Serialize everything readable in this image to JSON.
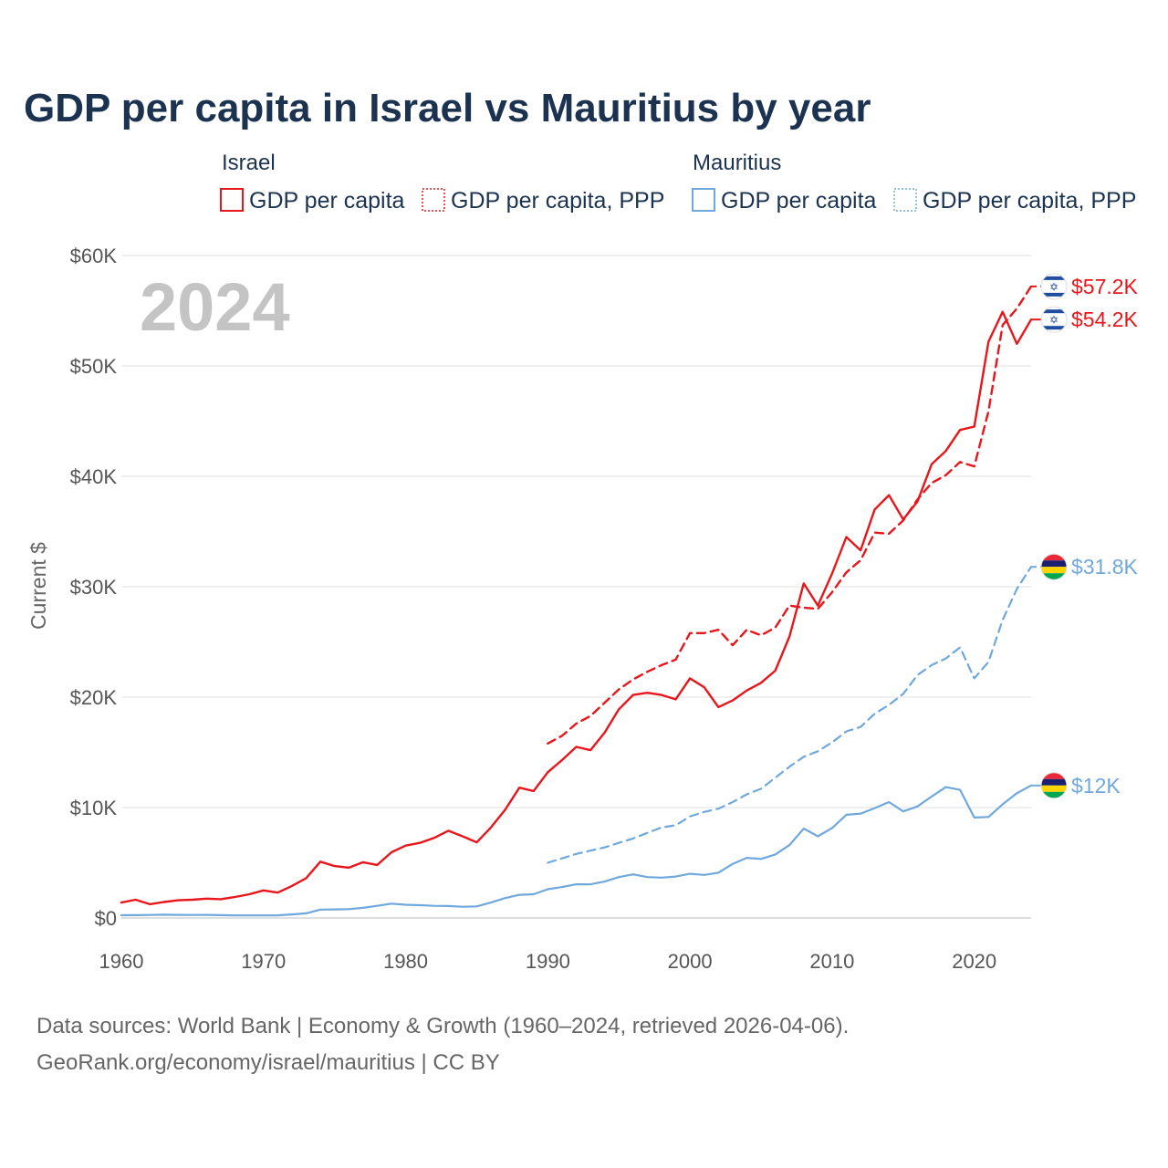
{
  "title": "GDP per capita in Israel vs Mauritius by year",
  "year_label": "2024",
  "legend": {
    "groups": [
      {
        "name": "Israel",
        "color": "#e8161b",
        "items": [
          {
            "label": "GDP per capita",
            "style": "solid"
          },
          {
            "label": "GDP per capita, PPP",
            "style": "dashed"
          }
        ]
      },
      {
        "name": "Mauritius",
        "color": "#6fa8dc",
        "items": [
          {
            "label": "GDP per capita",
            "style": "solid"
          },
          {
            "label": "GDP per capita, PPP",
            "style": "dashed"
          }
        ]
      }
    ]
  },
  "footer": {
    "line1": "Data sources: World Bank | Economy & Growth (1960–2024, retrieved 2026-04-06).",
    "line2": "GeoRank.org/economy/israel/mauritius | CC BY"
  },
  "chart_data": {
    "type": "line",
    "title": "GDP per capita in Israel vs Mauritius by year",
    "xlabel": "",
    "ylabel": "Current $",
    "xlim": [
      1960,
      2024
    ],
    "ylim": [
      0,
      60000
    ],
    "x_ticks": [
      1960,
      1970,
      1980,
      1990,
      2000,
      2010,
      2020
    ],
    "y_ticks": [
      0,
      10000,
      20000,
      30000,
      40000,
      50000,
      60000
    ],
    "y_tick_labels": [
      "$0",
      "$10K",
      "$20K",
      "$30K",
      "$40K",
      "$50K",
      "$60K"
    ],
    "grid": "horizontal",
    "series": [
      {
        "name": "Israel GDP per capita",
        "country": "Israel",
        "color": "#e8161b",
        "style": "solid",
        "end_label": "$54.2K",
        "x": [
          1960,
          1961,
          1962,
          1963,
          1964,
          1965,
          1966,
          1967,
          1968,
          1969,
          1970,
          1971,
          1972,
          1973,
          1974,
          1975,
          1976,
          1977,
          1978,
          1979,
          1980,
          1981,
          1982,
          1983,
          1984,
          1985,
          1986,
          1987,
          1988,
          1989,
          1990,
          1991,
          1992,
          1993,
          1994,
          1995,
          1996,
          1997,
          1998,
          1999,
          2000,
          2001,
          2002,
          2003,
          2004,
          2005,
          2006,
          2007,
          2008,
          2009,
          2010,
          2011,
          2012,
          2013,
          2014,
          2015,
          2016,
          2017,
          2018,
          2019,
          2020,
          2021,
          2022,
          2023,
          2024
        ],
        "values": [
          1400,
          1650,
          1250,
          1450,
          1600,
          1650,
          1750,
          1700,
          1900,
          2150,
          2500,
          2300,
          2900,
          3600,
          5100,
          4700,
          4550,
          5050,
          4800,
          5950,
          6550,
          6800,
          7250,
          7900,
          7400,
          6850,
          8200,
          9800,
          11800,
          11500,
          13200,
          14300,
          15500,
          15200,
          16800,
          18900,
          20200,
          20400,
          20200,
          19800,
          21700,
          20900,
          19100,
          19700,
          20600,
          21300,
          22400,
          25500,
          30300,
          28300,
          31200,
          34500,
          33300,
          37000,
          38300,
          36100,
          37700,
          41100,
          42300,
          44200,
          44500,
          52200,
          54900,
          52000,
          54200
        ]
      },
      {
        "name": "Israel GDP per capita, PPP",
        "country": "Israel",
        "color": "#e8161b",
        "style": "dashed",
        "end_label": "$57.2K",
        "x": [
          1990,
          1991,
          1992,
          1993,
          1994,
          1995,
          1996,
          1997,
          1998,
          1999,
          2000,
          2001,
          2002,
          2003,
          2004,
          2005,
          2006,
          2007,
          2008,
          2009,
          2010,
          2011,
          2012,
          2013,
          2014,
          2015,
          2016,
          2017,
          2018,
          2019,
          2020,
          2021,
          2022,
          2023,
          2024
        ],
        "values": [
          15800,
          16500,
          17600,
          18300,
          19500,
          20700,
          21600,
          22300,
          22900,
          23400,
          25800,
          25800,
          26100,
          24700,
          26100,
          25600,
          26300,
          28300,
          28100,
          28000,
          29500,
          31300,
          32400,
          34900,
          34800,
          36000,
          37900,
          39400,
          40100,
          41300,
          40900,
          45900,
          53700,
          55200,
          57200
        ]
      },
      {
        "name": "Mauritius GDP per capita",
        "country": "Mauritius",
        "color": "#6fa8dc",
        "style": "solid",
        "end_label": "$12K",
        "x": [
          1960,
          1961,
          1962,
          1963,
          1964,
          1965,
          1966,
          1967,
          1968,
          1969,
          1970,
          1971,
          1972,
          1973,
          1974,
          1975,
          1976,
          1977,
          1978,
          1979,
          1980,
          1981,
          1982,
          1983,
          1984,
          1985,
          1986,
          1987,
          1988,
          1989,
          1990,
          1991,
          1992,
          1993,
          1994,
          1995,
          1996,
          1997,
          1998,
          1999,
          2000,
          2001,
          2002,
          2003,
          2004,
          2005,
          2006,
          2007,
          2008,
          2009,
          2010,
          2011,
          2012,
          2013,
          2014,
          2015,
          2016,
          2017,
          2018,
          2019,
          2020,
          2021,
          2022,
          2023,
          2024
        ],
        "values": [
          250,
          260,
          270,
          300,
          280,
          270,
          280,
          260,
          230,
          230,
          230,
          240,
          320,
          420,
          760,
          780,
          800,
          920,
          1100,
          1300,
          1200,
          1160,
          1100,
          1080,
          1020,
          1050,
          1400,
          1800,
          2100,
          2150,
          2600,
          2800,
          3050,
          3050,
          3300,
          3700,
          3950,
          3700,
          3650,
          3750,
          4000,
          3900,
          4100,
          4900,
          5450,
          5350,
          5750,
          6600,
          8100,
          7400,
          8150,
          9350,
          9450,
          9950,
          10500,
          9650,
          10100,
          11000,
          11850,
          11600,
          9100,
          9150,
          10300,
          11300,
          12000
        ]
      },
      {
        "name": "Mauritius GDP per capita, PPP",
        "country": "Mauritius",
        "color": "#6fa8dc",
        "style": "dashed",
        "end_label": "$31.8K",
        "x": [
          1990,
          1991,
          1992,
          1993,
          1994,
          1995,
          1996,
          1997,
          1998,
          1999,
          2000,
          2001,
          2002,
          2003,
          2004,
          2005,
          2006,
          2007,
          2008,
          2009,
          2010,
          2011,
          2012,
          2013,
          2014,
          2015,
          2016,
          2017,
          2018,
          2019,
          2020,
          2021,
          2022,
          2023,
          2024
        ],
        "values": [
          5000,
          5400,
          5800,
          6100,
          6400,
          6800,
          7200,
          7700,
          8200,
          8400,
          9200,
          9600,
          9900,
          10500,
          11200,
          11700,
          12700,
          13700,
          14600,
          15100,
          15900,
          16900,
          17300,
          18500,
          19300,
          20300,
          22000,
          22900,
          23500,
          24500,
          21700,
          23200,
          27000,
          29800,
          31800
        ]
      }
    ]
  }
}
